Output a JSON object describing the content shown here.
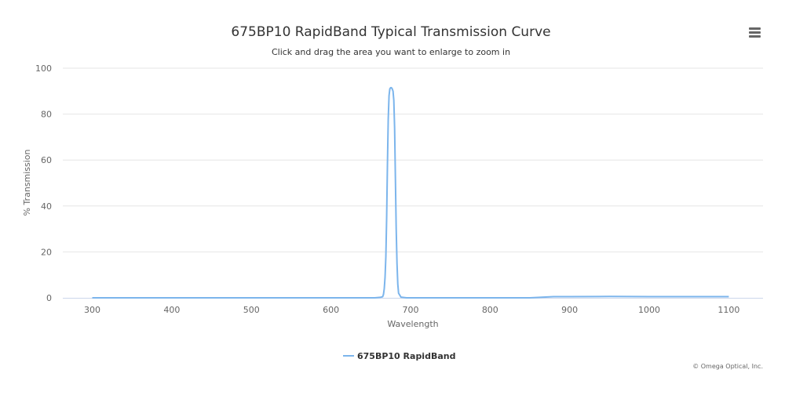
{
  "chart_data": {
    "type": "line",
    "title": "675BP10 RapidBand Typical Transmission Curve",
    "subtitle": "Click and drag the area you want to enlarge to zoom in",
    "xlabel": "Wavelength",
    "ylabel": "% Transmission",
    "xlim": [
      263,
      1143
    ],
    "ylim": [
      0,
      100
    ],
    "x_ticks": [
      300,
      400,
      500,
      600,
      700,
      800,
      900,
      1000,
      1100
    ],
    "y_ticks": [
      0,
      20,
      40,
      60,
      80,
      100
    ],
    "grid": "horizontal",
    "legend_position": "bottom-center",
    "series": [
      {
        "name": "675BP10 RapidBand",
        "color": "#7cb5ec",
        "x": [
          300,
          400,
          500,
          600,
          655,
          662,
          665,
          666,
          667,
          668,
          669,
          670,
          671,
          672,
          673,
          674,
          675,
          676,
          677,
          678,
          679,
          680,
          681,
          682,
          683,
          684,
          685,
          688,
          695,
          750,
          850,
          880,
          900,
          950,
          1000,
          1050,
          1100
        ],
        "y": [
          0,
          0,
          0,
          0,
          0,
          0.2,
          0.5,
          1.5,
          4,
          9,
          18,
          35,
          58,
          78,
          88,
          91,
          91.5,
          91.5,
          91,
          90,
          86,
          74,
          52,
          30,
          15,
          6,
          2,
          0.3,
          0,
          0,
          0,
          0.5,
          0.5,
          0.6,
          0.5,
          0.5,
          0.5
        ]
      }
    ]
  },
  "credits": "© Omega Optical, Inc.",
  "menu_icon": "hamburger-menu-icon"
}
